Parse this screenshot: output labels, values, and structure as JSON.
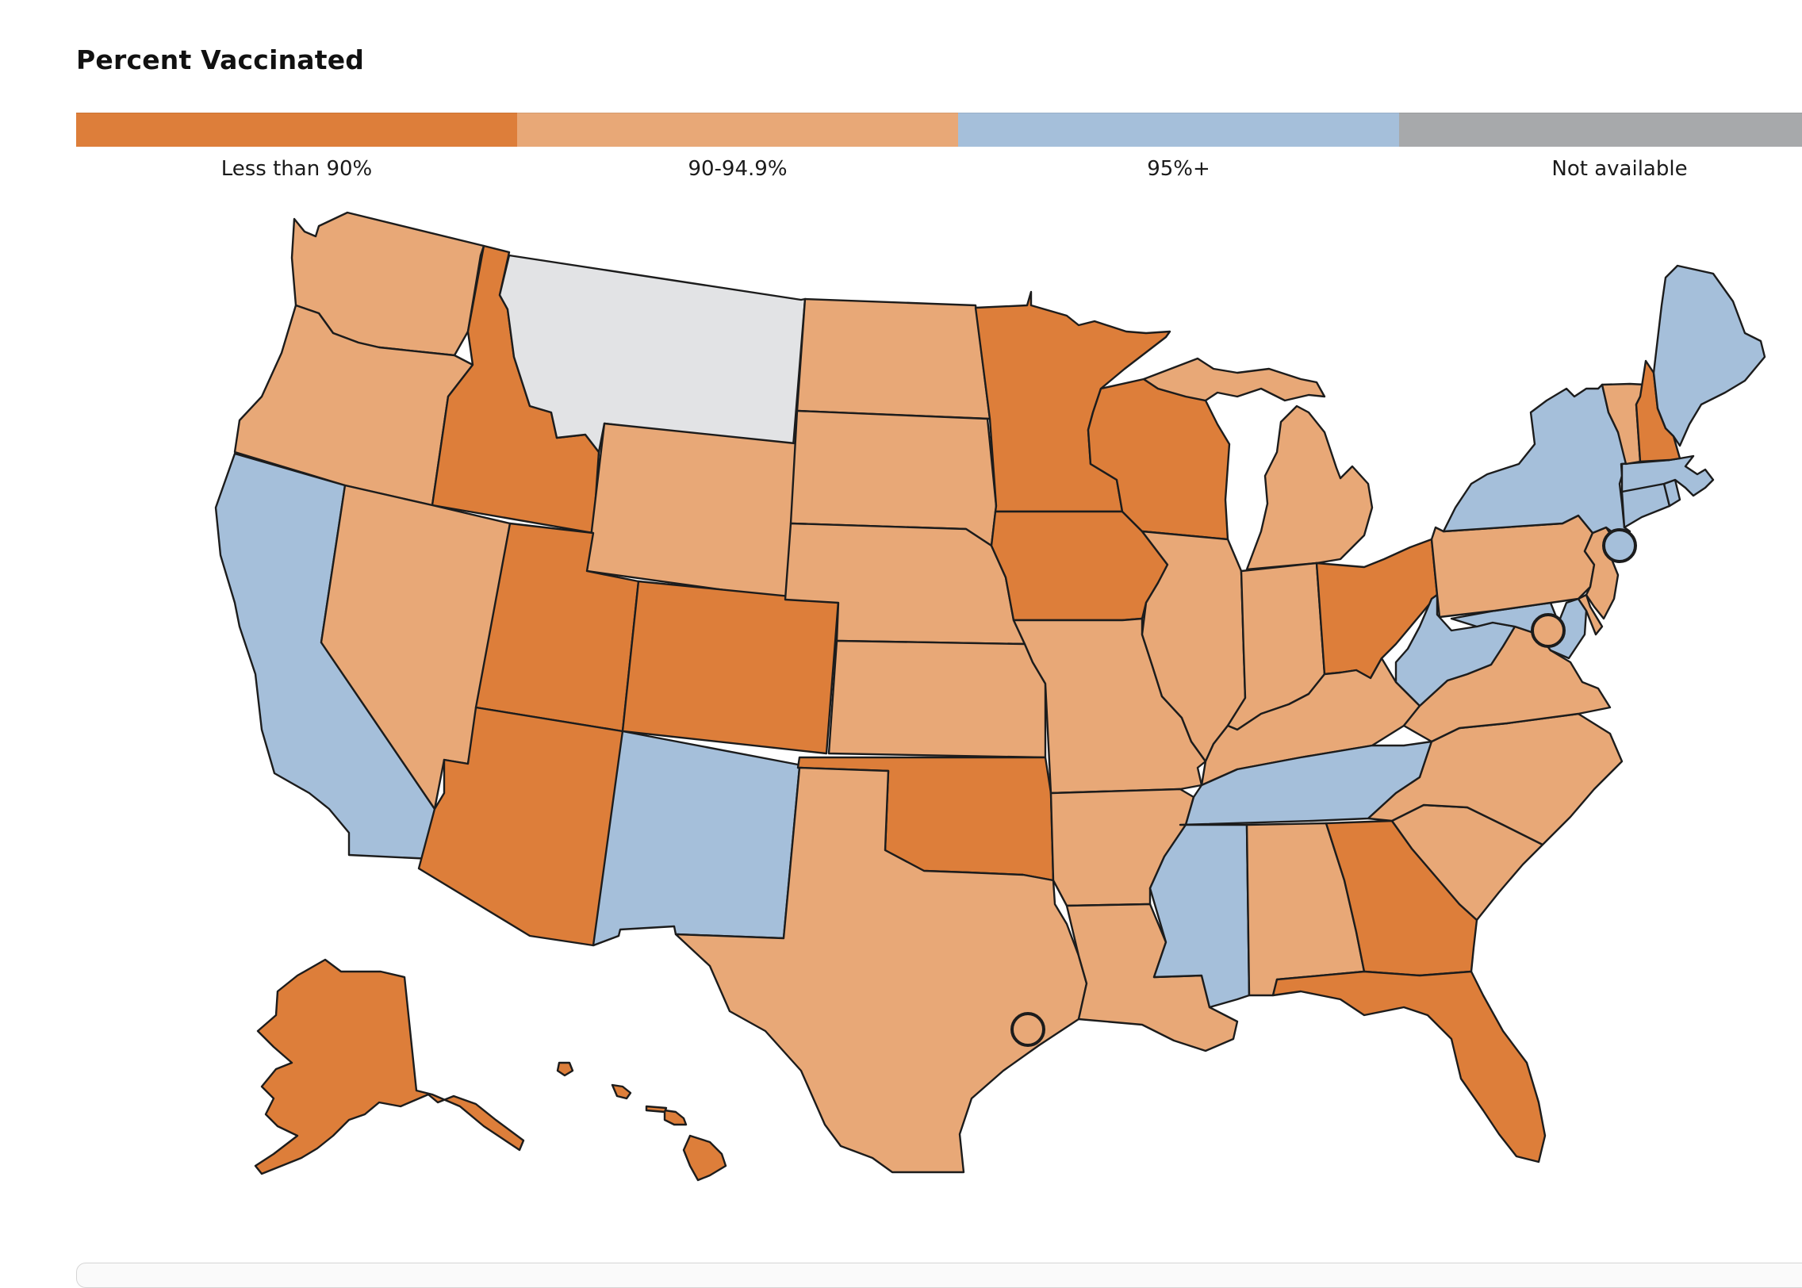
{
  "title": "Percent Vaccinated",
  "legend": [
    {
      "label": "Less than 90%",
      "color": "#dd7e3a"
    },
    {
      "label": "90-94.9%",
      "color": "#e8a877"
    },
    {
      "label": "95%+",
      "color": "#a5bfda"
    },
    {
      "label": "Not available",
      "color": "#a7a9ab"
    }
  ],
  "colors": {
    "lt90": "#dd7e3a",
    "mid": "#e8a877",
    "p95": "#a5bfda",
    "na_map": "#e2e3e5",
    "border": "#1c1c1c"
  },
  "states": [
    {
      "name": "Washington",
      "cat": "mid"
    },
    {
      "name": "Oregon",
      "cat": "mid"
    },
    {
      "name": "California",
      "cat": "p95"
    },
    {
      "name": "Idaho",
      "cat": "lt90"
    },
    {
      "name": "Nevada",
      "cat": "mid"
    },
    {
      "name": "Montana",
      "cat": "na_map"
    },
    {
      "name": "Wyoming",
      "cat": "mid"
    },
    {
      "name": "Utah",
      "cat": "lt90"
    },
    {
      "name": "Colorado",
      "cat": "lt90"
    },
    {
      "name": "Arizona",
      "cat": "lt90"
    },
    {
      "name": "New Mexico",
      "cat": "p95"
    },
    {
      "name": "North Dakota",
      "cat": "mid"
    },
    {
      "name": "South Dakota",
      "cat": "mid"
    },
    {
      "name": "Nebraska",
      "cat": "mid"
    },
    {
      "name": "Kansas",
      "cat": "mid"
    },
    {
      "name": "Oklahoma",
      "cat": "lt90"
    },
    {
      "name": "Texas",
      "cat": "mid"
    },
    {
      "name": "Minnesota",
      "cat": "lt90"
    },
    {
      "name": "Iowa",
      "cat": "lt90"
    },
    {
      "name": "Missouri",
      "cat": "mid"
    },
    {
      "name": "Arkansas",
      "cat": "mid"
    },
    {
      "name": "Louisiana",
      "cat": "mid"
    },
    {
      "name": "Wisconsin",
      "cat": "lt90"
    },
    {
      "name": "Illinois",
      "cat": "mid"
    },
    {
      "name": "Michigan",
      "cat": "mid"
    },
    {
      "name": "Indiana",
      "cat": "mid"
    },
    {
      "name": "Ohio",
      "cat": "lt90"
    },
    {
      "name": "Kentucky",
      "cat": "mid"
    },
    {
      "name": "Tennessee",
      "cat": "p95"
    },
    {
      "name": "Mississippi",
      "cat": "p95"
    },
    {
      "name": "Alabama",
      "cat": "mid"
    },
    {
      "name": "Georgia",
      "cat": "lt90"
    },
    {
      "name": "Florida",
      "cat": "lt90"
    },
    {
      "name": "South Carolina",
      "cat": "mid"
    },
    {
      "name": "North Carolina",
      "cat": "mid"
    },
    {
      "name": "Virginia",
      "cat": "mid"
    },
    {
      "name": "West Virginia",
      "cat": "p95"
    },
    {
      "name": "Maryland",
      "cat": "p95"
    },
    {
      "name": "Delaware",
      "cat": "mid"
    },
    {
      "name": "Pennsylvania",
      "cat": "mid"
    },
    {
      "name": "New Jersey",
      "cat": "mid"
    },
    {
      "name": "New York",
      "cat": "p95"
    },
    {
      "name": "Connecticut",
      "cat": "p95"
    },
    {
      "name": "Rhode Island",
      "cat": "p95"
    },
    {
      "name": "Massachusetts",
      "cat": "p95"
    },
    {
      "name": "Vermont",
      "cat": "mid"
    },
    {
      "name": "New Hampshire",
      "cat": "lt90"
    },
    {
      "name": "Maine",
      "cat": "p95"
    },
    {
      "name": "Alaska",
      "cat": "lt90"
    },
    {
      "name": "Hawaii",
      "cat": "lt90"
    }
  ],
  "city_markers": [
    {
      "name": "New York City",
      "cat": "p95"
    },
    {
      "name": "Washington, D.C.",
      "cat": "mid"
    },
    {
      "name": "Houston",
      "cat": "none"
    }
  ]
}
